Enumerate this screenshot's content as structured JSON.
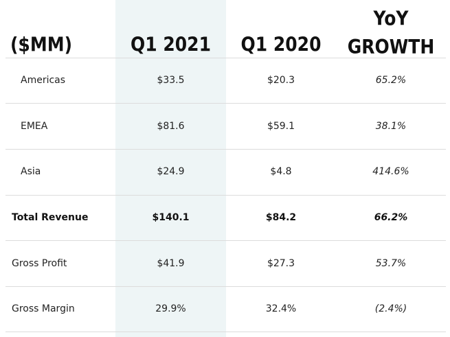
{
  "headers": {
    "metric": "($MM)",
    "col1": "Q1 2021",
    "col2": "Q1 2020",
    "col3_line1": "YoY",
    "col3_line2": "GROWTH"
  },
  "rows": [
    {
      "label": "Americas",
      "q1_2021": "$33.5",
      "q1_2020": "$20.3",
      "yoy": "65.2%"
    },
    {
      "label": "EMEA",
      "q1_2021": "$81.6",
      "q1_2020": "$59.1",
      "yoy": "38.1%"
    },
    {
      "label": "Asia",
      "q1_2021": "$24.9",
      "q1_2020": "$4.8",
      "yoy": "414.6%"
    },
    {
      "label": "Total Revenue",
      "q1_2021": "$140.1",
      "q1_2020": "$84.2",
      "yoy": "66.2%"
    },
    {
      "label": "Gross Profit",
      "q1_2021": "$41.9",
      "q1_2020": "$27.3",
      "yoy": "53.7%"
    },
    {
      "label": "Gross Margin",
      "q1_2021": "29.9%",
      "q1_2020": "32.4%",
      "yoy": "(2.4%)"
    }
  ],
  "colors": {
    "highlight_column": "#eef5f6",
    "divider": "#dcdcdc"
  }
}
